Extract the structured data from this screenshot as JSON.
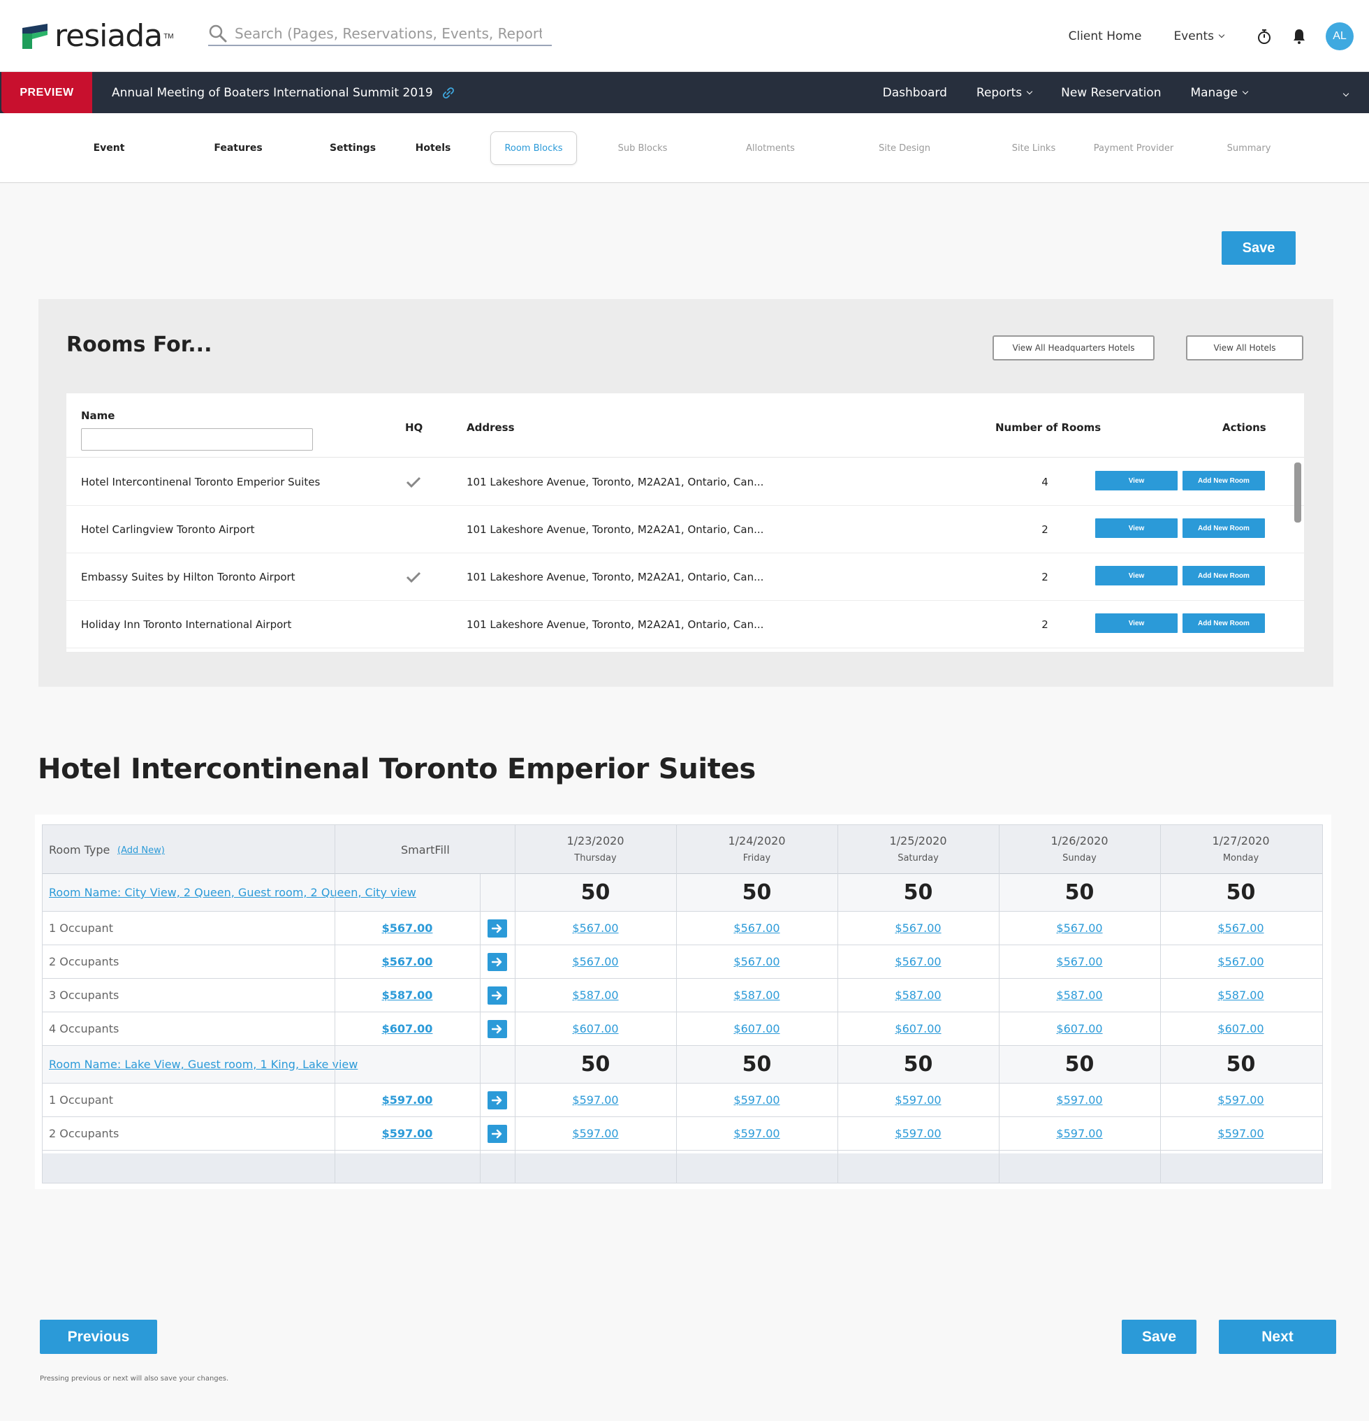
{
  "header": {
    "brand": "resiada",
    "brand_tm": "TM",
    "search_placeholder": "Search (Pages, Reservations, Events, Reports)",
    "links": {
      "client_home": "Client Home",
      "events": "Events"
    },
    "avatar_initials": "AL",
    "icons": [
      "search-icon",
      "stopwatch-icon",
      "bell-icon"
    ]
  },
  "event_bar": {
    "badge": "PREVIEW",
    "title": "Annual Meeting of Boaters International Summit 2019",
    "nav": {
      "dashboard": "Dashboard",
      "reports": "Reports",
      "new_reservation": "New Reservation",
      "manage": "Manage"
    }
  },
  "steps": [
    {
      "label": "Event",
      "state": "done"
    },
    {
      "label": "Features",
      "state": "done"
    },
    {
      "label": "Settings",
      "state": "done"
    },
    {
      "label": "Hotels",
      "state": "done"
    },
    {
      "label": "Room Blocks",
      "state": "active"
    },
    {
      "label": "Sub Blocks",
      "state": "future"
    },
    {
      "label": "Allotments",
      "state": "future"
    },
    {
      "label": "Site Design",
      "state": "future"
    },
    {
      "label": "Site Links",
      "state": "future"
    },
    {
      "label": "Payment Provider",
      "state": "future"
    },
    {
      "label": "Summary",
      "state": "future"
    }
  ],
  "actions": {
    "save": "Save",
    "previous": "Previous",
    "next": "Next",
    "note": "Pressing previous or next will also save your changes."
  },
  "rooms_for": {
    "title": "Rooms For...",
    "view_hq": "View All Headquarters Hotels",
    "view_all": "View All Hotels",
    "columns": {
      "name": "Name",
      "hq": "HQ",
      "address": "Address",
      "rooms": "Number of Rooms",
      "actions": "Actions"
    },
    "name_filter": "",
    "view_label": "View",
    "add_room_label": "Add New Room",
    "hotels": [
      {
        "name": "Hotel Intercontinenal Toronto Emperior Suites",
        "hq": true,
        "address": "101 Lakeshore Avenue, Toronto, M2A2A1, Ontario, Can...",
        "rooms": "4"
      },
      {
        "name": "Hotel Carlingview Toronto Airport",
        "hq": false,
        "address": "101 Lakeshore Avenue, Toronto, M2A2A1, Ontario, Can...",
        "rooms": "2"
      },
      {
        "name": "Embassy Suites by Hilton Toronto Airport",
        "hq": true,
        "address": "101 Lakeshore Avenue, Toronto, M2A2A1, Ontario, Can...",
        "rooms": "2"
      },
      {
        "name": "Holiday Inn Toronto International Airport",
        "hq": false,
        "address": "101 Lakeshore Avenue, Toronto, M2A2A1, Ontario, Can...",
        "rooms": "2"
      }
    ]
  },
  "hotel_detail": {
    "title": "Hotel Intercontinenal Toronto Emperior Suites",
    "room_type_label": "Room Type",
    "add_new": "(Add New)",
    "smartfill": "SmartFill",
    "dates": [
      {
        "date": "1/23/2020",
        "day": "Thursday"
      },
      {
        "date": "1/24/2020",
        "day": "Friday"
      },
      {
        "date": "1/25/2020",
        "day": "Saturday"
      },
      {
        "date": "1/26/2020",
        "day": "Sunday"
      },
      {
        "date": "1/27/2020",
        "day": "Monday"
      }
    ],
    "rooms": [
      {
        "name": "Room Name: City View, 2 Queen, Guest room, 2 Queen, City view",
        "counts": [
          "50",
          "50",
          "50",
          "50",
          "50"
        ],
        "occupancies": [
          {
            "label": "1 Occupant",
            "smartfill": "$567.00",
            "prices": [
              "$567.00",
              "$567.00",
              "$567.00",
              "$567.00",
              "$567.00"
            ]
          },
          {
            "label": "2 Occupants",
            "smartfill": "$567.00",
            "prices": [
              "$567.00",
              "$567.00",
              "$567.00",
              "$567.00",
              "$567.00"
            ]
          },
          {
            "label": "3 Occupants",
            "smartfill": "$587.00",
            "prices": [
              "$587.00",
              "$587.00",
              "$587.00",
              "$587.00",
              "$587.00"
            ]
          },
          {
            "label": "4 Occupants",
            "smartfill": "$607.00",
            "prices": [
              "$607.00",
              "$607.00",
              "$607.00",
              "$607.00",
              "$607.00"
            ]
          }
        ]
      },
      {
        "name": "Room Name: Lake View, Guest room, 1 King, Lake view",
        "counts": [
          "50",
          "50",
          "50",
          "50",
          "50"
        ],
        "occupancies": [
          {
            "label": "1 Occupant",
            "smartfill": "$597.00",
            "prices": [
              "$597.00",
              "$597.00",
              "$597.00",
              "$597.00",
              "$597.00"
            ]
          },
          {
            "label": "2 Occupants",
            "smartfill": "$597.00",
            "prices": [
              "$597.00",
              "$597.00",
              "$597.00",
              "$597.00",
              "$597.00"
            ]
          }
        ]
      }
    ]
  },
  "colors": {
    "accent": "#2b9ad8",
    "preview_red": "#c8102e",
    "dark_bar": "#272f3d",
    "logo_green": "#1f9e5b",
    "logo_navy": "#1c3a5e"
  }
}
